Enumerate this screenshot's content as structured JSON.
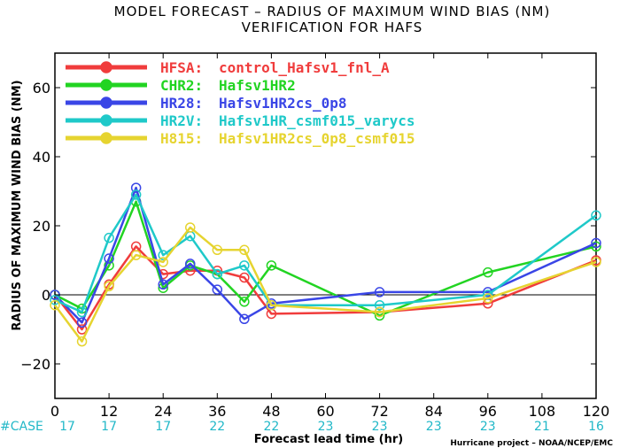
{
  "chart_data": {
    "type": "line",
    "title": "MODEL FORECAST – RADIUS OF MAXIMUM WIND BIAS (NM)",
    "subtitle": "VERIFICATION FOR HAFS",
    "xlabel": "Forecast lead time (hr)",
    "ylabel": "RADIUS OF MAXIMUM WIND BIAS (NM)",
    "xlim": [
      0,
      120
    ],
    "ylim": [
      -30,
      70
    ],
    "xticks": [
      0,
      12,
      24,
      36,
      48,
      60,
      72,
      84,
      96,
      108,
      120
    ],
    "yticks": [
      -20,
      0,
      20,
      40,
      60
    ],
    "grid": false,
    "legend_position": "top-left",
    "zero_line": true,
    "series": [
      {
        "name": "HFSA:",
        "desc": "control_Hafsv1_fnl_A",
        "color": "#f03c3c",
        "x": [
          0,
          6,
          12,
          18,
          24,
          30,
          36,
          42,
          48,
          72,
          96,
          120
        ],
        "y": [
          0,
          -10,
          3,
          14,
          6,
          7,
          7,
          5,
          -5.5,
          -5,
          -2.5,
          10
        ]
      },
      {
        "name": "CHR2:",
        "desc": "Hafsv1HR2",
        "color": "#22d422",
        "x": [
          0,
          6,
          12,
          18,
          24,
          30,
          36,
          42,
          48,
          72,
          96,
          120
        ],
        "y": [
          0,
          -4,
          8.5,
          27,
          2,
          8.5,
          6,
          -2,
          8.5,
          -6,
          6.5,
          14
        ]
      },
      {
        "name": "HR28:",
        "desc": "Hafsv1HR2cs_0p8",
        "color": "#3a46e6",
        "x": [
          0,
          6,
          12,
          18,
          24,
          30,
          36,
          42,
          48,
          72,
          96,
          120
        ],
        "y": [
          0,
          -8,
          10.5,
          31,
          3,
          9,
          1.5,
          -7,
          -2.5,
          0.8,
          0.8,
          15
        ]
      },
      {
        "name": "HR2V:",
        "desc": "Hafsv1HR_csmf015_varycs",
        "color": "#1fc9c9",
        "x": [
          0,
          6,
          12,
          18,
          24,
          30,
          36,
          42,
          48,
          72,
          96,
          120
        ],
        "y": [
          -1.5,
          -5,
          16.5,
          29,
          11.5,
          17,
          6,
          8.5,
          -3,
          -3,
          0,
          23
        ]
      },
      {
        "name": "H815:",
        "desc": "Hafsv1HR2cs_0p8_csmf015",
        "color": "#e6d430",
        "x": [
          0,
          6,
          12,
          18,
          24,
          30,
          36,
          42,
          48,
          72,
          96,
          120
        ],
        "y": [
          -3,
          -13.5,
          2.5,
          11.5,
          9.5,
          19.5,
          13,
          13,
          -3,
          -5,
          -1,
          9.5
        ]
      }
    ],
    "cases": {
      "label": "#CASE",
      "x": [
        0,
        12,
        24,
        36,
        48,
        72,
        96,
        108,
        120
      ],
      "values": [
        "17",
        "17",
        "17",
        "22",
        "22",
        "23",
        "23",
        "23",
        "23",
        "21",
        "16"
      ],
      "x_all": [
        0,
        12,
        24,
        36,
        48,
        60,
        72,
        84,
        96,
        108,
        120
      ]
    },
    "credit": "Hurricane project – NOAA/NCEP/EMC"
  }
}
